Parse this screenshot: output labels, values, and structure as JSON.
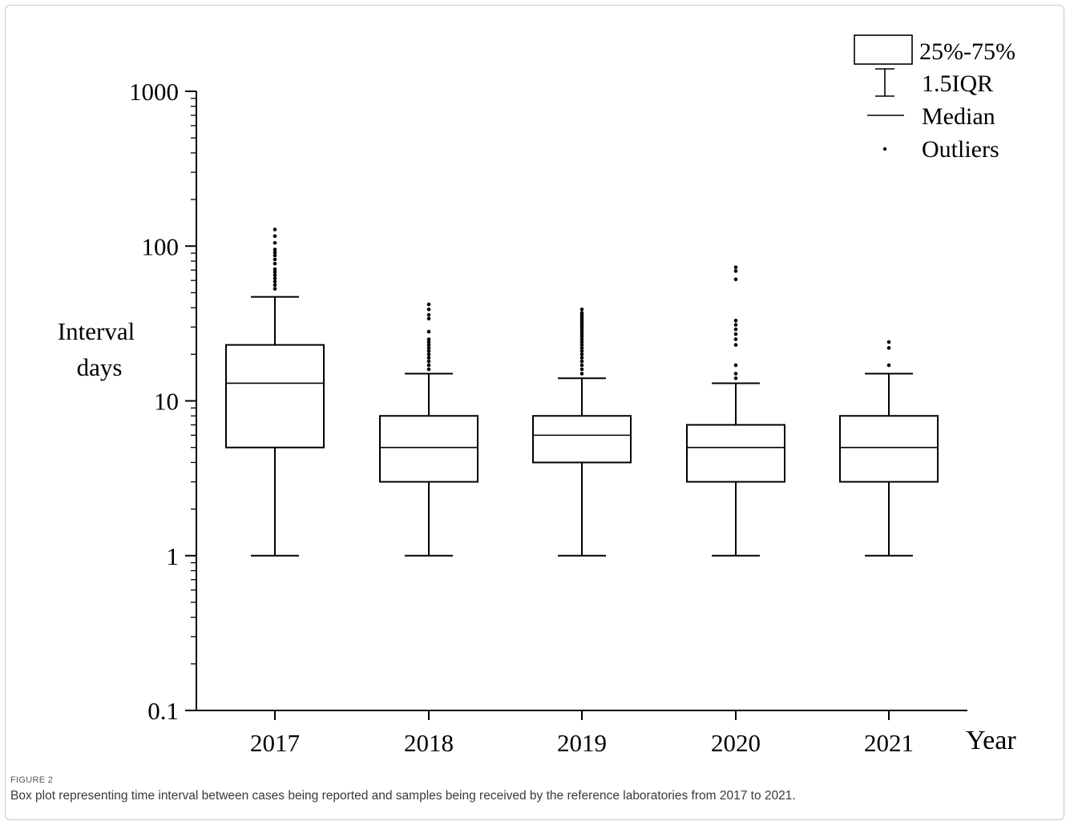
{
  "figure": {
    "label": "FIGURE 2",
    "caption": "Box plot representing time interval between cases being reported and samples being received by the reference laboratories from 2017 to 2021."
  },
  "legend": {
    "box_label": "25%-75%",
    "whisker_label": "1.5IQR",
    "median_label": "Median",
    "outlier_label": "Outliers"
  },
  "chart_data": {
    "type": "box",
    "title": "",
    "xlabel": "Year",
    "ylabel": "Interval days",
    "yscale": "log",
    "ylim": [
      0.1,
      1000
    ],
    "yticks": [
      {
        "value": 0.1,
        "label": "0.1"
      },
      {
        "value": 1,
        "label": "1"
      },
      {
        "value": 10,
        "label": "10"
      },
      {
        "value": 100,
        "label": "100"
      },
      {
        "value": 1000,
        "label": "1000"
      }
    ],
    "categories": [
      "2017",
      "2018",
      "2019",
      "2020",
      "2021"
    ],
    "boxes": [
      {
        "category": "2017",
        "whisker_low": 1,
        "q1": 5,
        "median": 13,
        "q3": 23,
        "whisker_high": 47,
        "outliers": [
          53,
          56,
          59,
          62,
          65,
          68,
          71,
          77,
          82,
          87,
          91,
          95,
          105,
          116,
          128
        ]
      },
      {
        "category": "2018",
        "whisker_low": 1,
        "q1": 3,
        "median": 5,
        "q3": 8,
        "whisker_high": 15,
        "outliers": [
          16,
          17,
          18,
          19,
          20,
          21,
          22,
          23,
          24,
          25,
          28,
          34,
          36,
          39,
          42
        ]
      },
      {
        "category": "2019",
        "whisker_low": 1,
        "q1": 4,
        "median": 6,
        "q3": 8,
        "whisker_high": 14,
        "outliers": [
          15,
          16,
          17,
          18,
          19,
          20,
          21,
          22,
          23,
          24,
          25,
          26,
          27,
          28,
          29,
          30,
          31,
          32,
          33,
          34,
          35,
          36,
          37,
          39
        ]
      },
      {
        "category": "2020",
        "whisker_low": 1,
        "q1": 3,
        "median": 5,
        "q3": 7,
        "whisker_high": 13,
        "outliers": [
          14,
          15,
          17,
          23,
          25,
          27,
          29,
          31,
          33,
          61,
          69,
          73
        ]
      },
      {
        "category": "2021",
        "whisker_low": 1,
        "q1": 3,
        "median": 5,
        "q3": 8,
        "whisker_high": 15,
        "outliers": [
          17,
          22,
          24
        ]
      }
    ],
    "legend_position": "top-right",
    "grid": false
  }
}
